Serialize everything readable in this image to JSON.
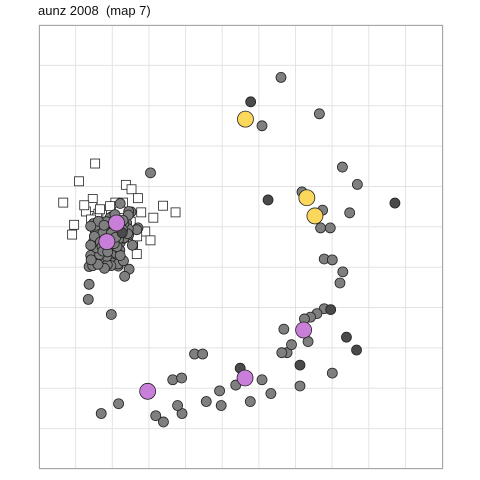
{
  "title": "aunz 2008  (map 7)",
  "chart_data": {
    "type": "scatter",
    "title": "aunz 2008  (map 7)",
    "xlabel": "",
    "ylabel": "",
    "xlim": [
      0,
      100
    ],
    "ylim": [
      0,
      100
    ],
    "grid": true,
    "x_gridlines": [
      0,
      9.07,
      18.14,
      27.21,
      36.28,
      45.35,
      54.42,
      63.49,
      72.56,
      81.63,
      90.7,
      100
    ],
    "y_gridlines": [
      0,
      9.09,
      18.18,
      27.27,
      36.36,
      45.45,
      54.55,
      63.64,
      72.73,
      81.82,
      90.91,
      100
    ],
    "colors": {
      "panel_border": "#a6a6a6",
      "grid": "#e3e3e3",
      "gray_fill": "#7f7f7f",
      "dark_fill": "#4a4a4a",
      "yellow_fill": "#fbd75b",
      "purple_fill": "#c97fd9",
      "outline": "#222222",
      "square_fill": "#ffffff"
    },
    "series": [
      {
        "marker": "circle-gray",
        "points": [
          [
            59.9,
            88.2
          ],
          [
            27.6,
            66.7
          ],
          [
            55.2,
            77.3
          ],
          [
            69.4,
            80.0
          ],
          [
            75.1,
            68.0
          ],
          [
            65.1,
            62.4
          ],
          [
            70.2,
            58.3
          ],
          [
            76.9,
            57.7
          ],
          [
            78.8,
            64.1
          ],
          [
            69.7,
            54.3
          ],
          [
            72.1,
            54.3
          ],
          [
            70.6,
            47.3
          ],
          [
            72.6,
            47.1
          ],
          [
            75.2,
            44.4
          ],
          [
            74.5,
            41.9
          ],
          [
            70.6,
            36.1
          ],
          [
            68.8,
            35.0
          ],
          [
            67.2,
            34.2
          ],
          [
            65.7,
            33.8
          ],
          [
            60.6,
            31.5
          ],
          [
            61.4,
            26.2
          ],
          [
            60.1,
            26.2
          ],
          [
            62.5,
            28.0
          ],
          [
            66.6,
            28.7
          ],
          [
            72.6,
            21.6
          ],
          [
            55.2,
            20.1
          ],
          [
            64.6,
            18.7
          ],
          [
            57.4,
            17.0
          ],
          [
            48.7,
            18.9
          ],
          [
            52.3,
            15.2
          ],
          [
            44.7,
            17.6
          ],
          [
            45.1,
            14.3
          ],
          [
            35.4,
            12.5
          ],
          [
            34.3,
            14.3
          ],
          [
            38.5,
            25.9
          ],
          [
            30.8,
            10.6
          ],
          [
            28.9,
            12.0
          ],
          [
            19.7,
            14.7
          ],
          [
            20.1,
            59.8
          ],
          [
            22.8,
            57.9
          ],
          [
            24.5,
            54.3
          ],
          [
            22.0,
            53.6
          ],
          [
            24.2,
            53.9
          ],
          [
            21.7,
            55.4
          ],
          [
            20.0,
            53.9
          ],
          [
            19.2,
            54.8
          ],
          [
            18.8,
            52.9
          ],
          [
            18.3,
            52.5
          ],
          [
            18.9,
            52.1
          ],
          [
            17.9,
            53.2
          ],
          [
            16.6,
            51.8
          ],
          [
            17.1,
            48.8
          ],
          [
            18.1,
            46.4
          ],
          [
            19.6,
            45.7
          ],
          [
            22.3,
            45.0
          ],
          [
            21.2,
            43.4
          ],
          [
            19.1,
            48.6
          ],
          [
            19.6,
            46.2
          ],
          [
            20.1,
            51.0
          ],
          [
            22.2,
            52.8
          ],
          [
            21.3,
            54.3
          ],
          [
            17.9,
            34.8
          ],
          [
            20.9,
            46.9
          ],
          [
            22.1,
            54.1
          ],
          [
            21.0,
            52.0
          ],
          [
            16.5,
            52.5
          ],
          [
            15.3,
            49.8
          ],
          [
            17.8,
            45.8
          ],
          [
            16.6,
            49.6
          ],
          [
            23.1,
            50.4
          ],
          [
            16.5,
            47.2
          ],
          [
            16.9,
            46.0
          ],
          [
            16.2,
            45.2
          ],
          [
            18.3,
            50.5
          ],
          [
            17.8,
            51.5
          ],
          [
            22.2,
            58.0
          ],
          [
            22.1,
            57.2
          ],
          [
            16.2,
            50.3
          ],
          [
            15.4,
            49.9
          ],
          [
            20.0,
            49.3
          ],
          [
            15.2,
            55.0
          ],
          [
            14.3,
            54.5
          ],
          [
            16.7,
            51.1
          ],
          [
            20.1,
            52.7
          ],
          [
            21.4,
            52.8
          ],
          [
            17.0,
            53.3
          ],
          [
            19.1,
            53.9
          ],
          [
            12.8,
            48.1
          ],
          [
            12.4,
            45.6
          ],
          [
            12.4,
            41.6
          ],
          [
            13.3,
            45.8
          ],
          [
            13.5,
            55.3
          ],
          [
            14.5,
            53.4
          ],
          [
            14.9,
            52.3
          ],
          [
            16.1,
            53.4
          ],
          [
            17.4,
            54.1
          ],
          [
            18.6,
            55.5
          ],
          [
            21.1,
            52.1
          ],
          [
            20.1,
            48.1
          ],
          [
            16.8,
            47.9
          ],
          [
            15.0,
            48.3
          ],
          [
            14.3,
            49.8
          ],
          [
            13.5,
            51.2
          ],
          [
            13.9,
            53.7
          ],
          [
            14.2,
            54.9
          ],
          [
            21.9,
            53.0
          ],
          [
            21.0,
            55.3
          ],
          [
            20.4,
            55.7
          ],
          [
            19.1,
            56.5
          ],
          [
            18.0,
            56.8
          ],
          [
            17.5,
            56.5
          ],
          [
            16.7,
            55.7
          ],
          [
            16.3,
            54.0
          ],
          [
            15.8,
            53.1
          ],
          [
            19.1,
            51.6
          ],
          [
            19.7,
            51.8
          ],
          [
            17.9,
            53.1
          ],
          [
            14.7,
            55.8
          ],
          [
            16.1,
            54.9
          ],
          [
            12.8,
            54.7
          ],
          [
            13.7,
            52.4
          ],
          [
            15.2,
            51.1
          ],
          [
            15.6,
            50.1
          ],
          [
            15.8,
            49.1
          ],
          [
            17.0,
            48.9
          ],
          [
            19.3,
            50.1
          ],
          [
            18.6,
            50.8
          ],
          [
            19.0,
            52.2
          ],
          [
            20.7,
            53.9
          ],
          [
            20.8,
            56.0
          ],
          [
            18.8,
            57.3
          ],
          [
            12.2,
            38.2
          ],
          [
            12.8,
            50.4
          ],
          [
            14.6,
            46.1
          ],
          [
            12.9,
            47.1
          ],
          [
            40.5,
            25.9
          ],
          [
            15.4,
            12.5
          ],
          [
            33.1,
            20.1
          ],
          [
            41.4,
            15.2
          ],
          [
            35.3,
            20.5
          ]
        ]
      },
      {
        "marker": "circle-dark",
        "points": [
          [
            52.4,
            82.7
          ],
          [
            56.7,
            60.6
          ],
          [
            88.1,
            59.9
          ],
          [
            76.1,
            29.7
          ],
          [
            49.8,
            22.7
          ],
          [
            20.6,
            53.2
          ],
          [
            64.6,
            23.4
          ],
          [
            78.6,
            26.8
          ],
          [
            72.2,
            35.9
          ]
        ]
      },
      {
        "marker": "circle-yellow",
        "points": [
          [
            51.1,
            78.8
          ],
          [
            66.3,
            61.1
          ],
          [
            68.3,
            57.0
          ]
        ]
      },
      {
        "marker": "circle-purple",
        "points": [
          [
            19.2,
            55.4
          ],
          [
            16.8,
            51.2
          ],
          [
            51.0,
            20.5
          ],
          [
            65.5,
            31.3
          ],
          [
            26.9,
            17.5
          ]
        ]
      },
      {
        "marker": "square-open",
        "points": [
          [
            13.9,
            68.8
          ],
          [
            21.5,
            64.0
          ],
          [
            9.9,
            64.8
          ],
          [
            13.3,
            60.8
          ],
          [
            22.9,
            63.0
          ],
          [
            24.5,
            61.0
          ],
          [
            6.0,
            60.0
          ],
          [
            13.2,
            59.0
          ],
          [
            11.6,
            58.0
          ],
          [
            14.7,
            57.5
          ],
          [
            14.4,
            56.6
          ],
          [
            12.9,
            56.2
          ],
          [
            15.4,
            55.4
          ],
          [
            25.3,
            57.8
          ],
          [
            28.3,
            56.6
          ],
          [
            17.8,
            57.8
          ],
          [
            18.9,
            60.0
          ],
          [
            20.8,
            60.0
          ],
          [
            16.9,
            51.6
          ],
          [
            16.1,
            50.0
          ],
          [
            23.1,
            52.5
          ],
          [
            23.3,
            50.7
          ],
          [
            8.7,
            55.0
          ],
          [
            26.3,
            53.5
          ],
          [
            33.8,
            57.8
          ],
          [
            20.0,
            53.2
          ],
          [
            17.5,
            53.6
          ],
          [
            16.4,
            52.7
          ],
          [
            15.6,
            54.7
          ],
          [
            17.6,
            59.2
          ],
          [
            24.3,
            52.4
          ],
          [
            16.5,
            55.5
          ],
          [
            11.2,
            59.4
          ],
          [
            22.7,
            55.7
          ],
          [
            19.9,
            56.5
          ],
          [
            8.2,
            52.8
          ],
          [
            30.7,
            59.3
          ],
          [
            17.0,
            53.7
          ],
          [
            15.1,
            58.5
          ],
          [
            27.6,
            51.5
          ],
          [
            24.2,
            48.4
          ],
          [
            18.6,
            48.6
          ]
        ]
      }
    ]
  }
}
